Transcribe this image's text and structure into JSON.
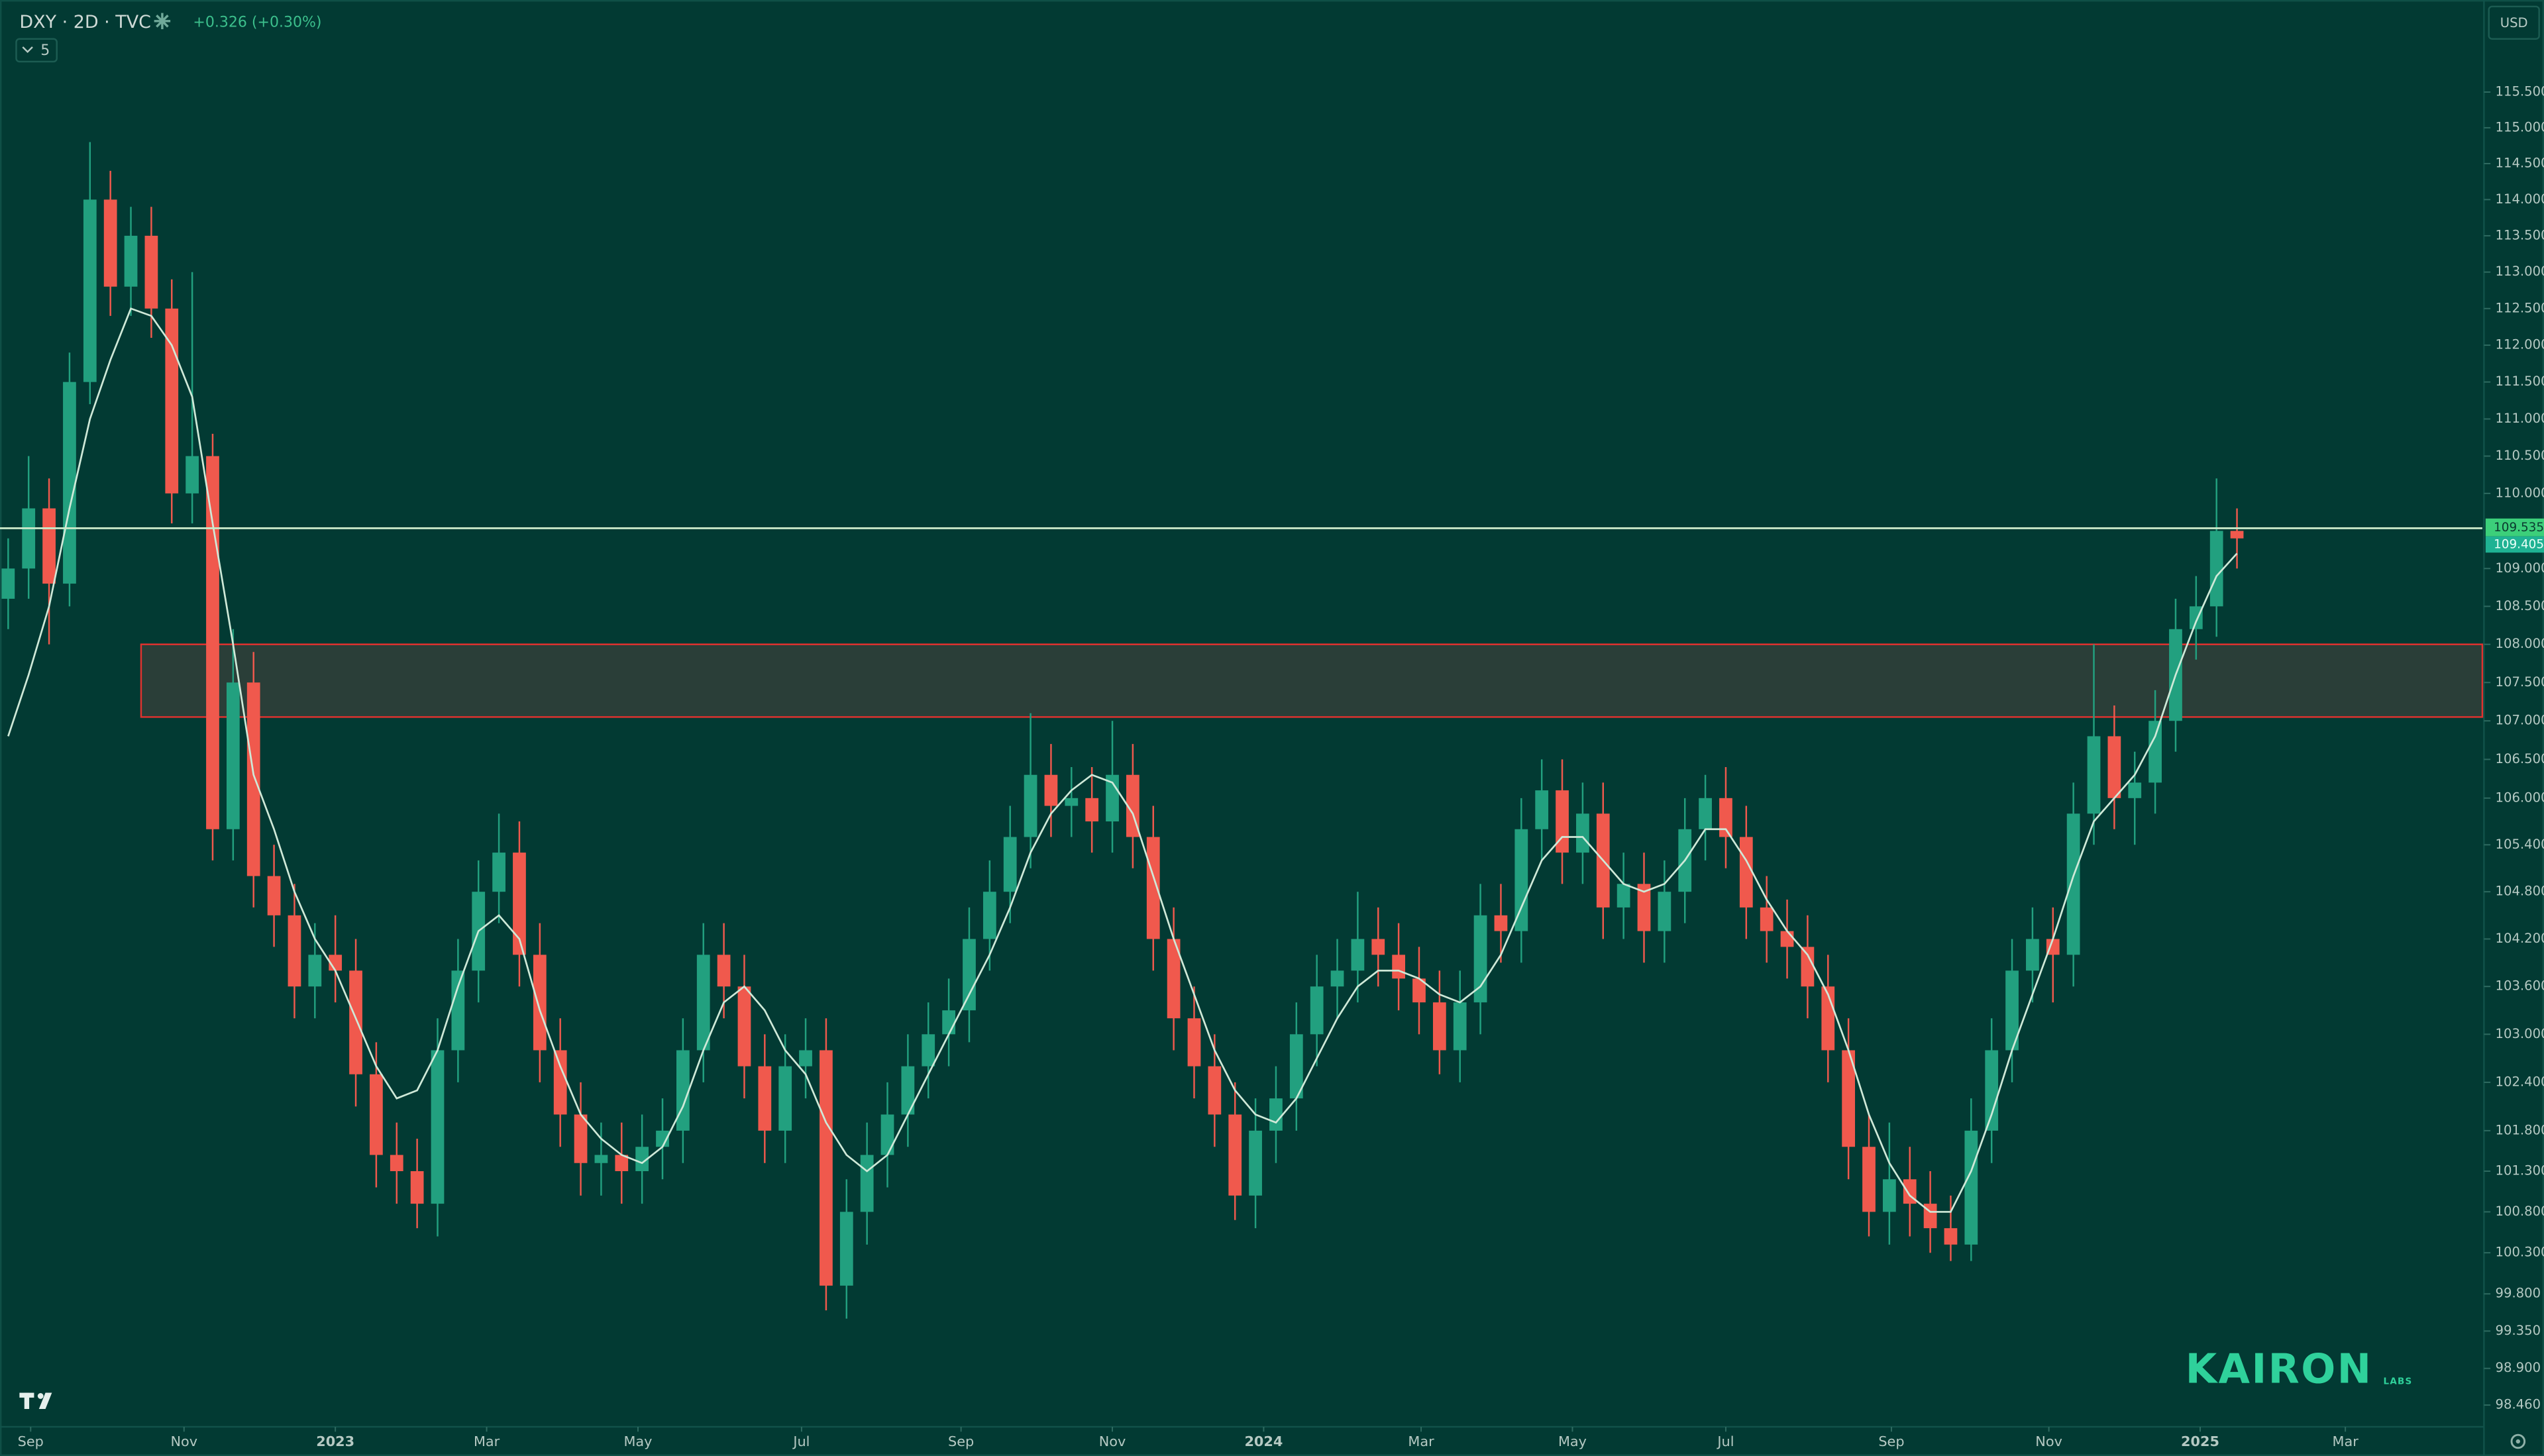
{
  "chart_data": {
    "type": "candlestick",
    "title": "DXY · 2D · TVC",
    "change": "+0.326 (+0.30%)",
    "indicator": "5",
    "currency": "USD",
    "logo": "KAIRON",
    "logo_sub": "LABS",
    "log_scale": true,
    "grid": false,
    "up_color": "#22a07f",
    "down_color": "#f0594d",
    "ylim": [
      98.2,
      116.8
    ],
    "xlim": [
      -0.4,
      121
    ],
    "yticks": [
      {
        "value": 115.5,
        "label": "115.500"
      },
      {
        "value": 115,
        "label": "115.000"
      },
      {
        "value": 114.5,
        "label": "114.500"
      },
      {
        "value": 114,
        "label": "114.000"
      },
      {
        "value": 113.5,
        "label": "113.500"
      },
      {
        "value": 113,
        "label": "113.000"
      },
      {
        "value": 112.5,
        "label": "112.500"
      },
      {
        "value": 112,
        "label": "112.000"
      },
      {
        "value": 111.5,
        "label": "111.500"
      },
      {
        "value": 111,
        "label": "111.000"
      },
      {
        "value": 110.5,
        "label": "110.500"
      },
      {
        "value": 110,
        "label": "110.000"
      },
      {
        "value": 109,
        "label": "109.000"
      },
      {
        "value": 108.5,
        "label": "108.500"
      },
      {
        "value": 108,
        "label": "108.000"
      },
      {
        "value": 107.5,
        "label": "107.500"
      },
      {
        "value": 107,
        "label": "107.000"
      },
      {
        "value": 106.5,
        "label": "106.500"
      },
      {
        "value": 106,
        "label": "106.000"
      },
      {
        "value": 105.4,
        "label": "105.400"
      },
      {
        "value": 104.8,
        "label": "104.800"
      },
      {
        "value": 104.2,
        "label": "104.200"
      },
      {
        "value": 103.6,
        "label": "103.600"
      },
      {
        "value": 103,
        "label": "103.000"
      },
      {
        "value": 102.4,
        "label": "102.400"
      },
      {
        "value": 101.8,
        "label": "101.800"
      },
      {
        "value": 101.3,
        "label": "101.300"
      },
      {
        "value": 100.8,
        "label": "100.800"
      },
      {
        "value": 100.3,
        "label": "100.300"
      },
      {
        "value": 99.8,
        "label": "99.800"
      },
      {
        "value": 99.35,
        "label": "99.350"
      },
      {
        "value": 98.9,
        "label": "98.900"
      },
      {
        "value": 98.46,
        "label": "98.460"
      }
    ],
    "xticks": [
      {
        "value": 1.1,
        "label": "Sep"
      },
      {
        "value": 8.6,
        "label": "Nov"
      },
      {
        "value": 16.0,
        "label": "2023"
      },
      {
        "value": 23.4,
        "label": "Mar"
      },
      {
        "value": 30.8,
        "label": "May"
      },
      {
        "value": 38.8,
        "label": "Jul"
      },
      {
        "value": 46.6,
        "label": "Sep"
      },
      {
        "value": 54.0,
        "label": "Nov"
      },
      {
        "value": 61.4,
        "label": "2024"
      },
      {
        "value": 69.1,
        "label": "Mar"
      },
      {
        "value": 76.5,
        "label": "May"
      },
      {
        "value": 84.0,
        "label": "Jul"
      },
      {
        "value": 92.1,
        "label": "Sep"
      },
      {
        "value": 99.8,
        "label": "Nov"
      },
      {
        "value": 107.2,
        "label": "2025"
      },
      {
        "value": 114.3,
        "label": "Mar"
      }
    ],
    "hline": 109.535,
    "hline_color": "#c9e8c8",
    "last_price": 109.405,
    "zone": {
      "x0": 6.5,
      "y": [
        107.05,
        108.0
      ],
      "color": "#2f3f38",
      "border": "#e0322f"
    },
    "ohlc": [
      [
        108.6,
        109.4,
        108.2,
        109.0
      ],
      [
        109.0,
        110.5,
        108.6,
        109.8
      ],
      [
        109.8,
        110.2,
        108.0,
        108.8
      ],
      [
        108.8,
        111.9,
        108.5,
        111.5
      ],
      [
        111.5,
        114.8,
        111.2,
        114.0
      ],
      [
        114.0,
        114.4,
        112.4,
        112.8
      ],
      [
        112.8,
        113.9,
        112.4,
        113.5
      ],
      [
        113.5,
        113.9,
        112.1,
        112.5
      ],
      [
        112.5,
        112.9,
        109.6,
        110.0
      ],
      [
        110.0,
        113.0,
        109.6,
        110.5
      ],
      [
        110.5,
        110.8,
        105.2,
        105.6
      ],
      [
        105.6,
        108.2,
        105.2,
        107.5
      ],
      [
        107.5,
        107.9,
        104.6,
        105.0
      ],
      [
        105.0,
        105.4,
        104.1,
        104.5
      ],
      [
        104.5,
        104.9,
        103.2,
        103.6
      ],
      [
        103.6,
        104.4,
        103.2,
        104.0
      ],
      [
        104.0,
        104.5,
        103.4,
        103.8
      ],
      [
        103.8,
        104.2,
        102.1,
        102.5
      ],
      [
        102.5,
        102.9,
        101.1,
        101.5
      ],
      [
        101.5,
        101.9,
        100.9,
        101.3
      ],
      [
        101.3,
        101.7,
        100.6,
        100.9
      ],
      [
        100.9,
        103.2,
        100.5,
        102.8
      ],
      [
        102.8,
        104.2,
        102.4,
        103.8
      ],
      [
        103.8,
        105.2,
        103.4,
        104.8
      ],
      [
        104.8,
        105.8,
        104.4,
        105.3
      ],
      [
        105.3,
        105.7,
        103.6,
        104.0
      ],
      [
        104.0,
        104.4,
        102.4,
        102.8
      ],
      [
        102.8,
        103.2,
        101.6,
        102.0
      ],
      [
        102.0,
        102.4,
        101.0,
        101.4
      ],
      [
        101.4,
        101.9,
        101.0,
        101.5
      ],
      [
        101.5,
        101.9,
        100.9,
        101.3
      ],
      [
        101.3,
        102.0,
        100.9,
        101.6
      ],
      [
        101.6,
        102.2,
        101.2,
        101.8
      ],
      [
        101.8,
        103.2,
        101.4,
        102.8
      ],
      [
        102.8,
        104.4,
        102.4,
        104.0
      ],
      [
        104.0,
        104.4,
        103.2,
        103.6
      ],
      [
        103.6,
        104.0,
        102.2,
        102.6
      ],
      [
        102.6,
        103.0,
        101.4,
        101.8
      ],
      [
        101.8,
        103.0,
        101.4,
        102.6
      ],
      [
        102.6,
        103.2,
        102.2,
        102.8
      ],
      [
        102.8,
        103.2,
        99.6,
        99.9
      ],
      [
        99.9,
        101.2,
        99.5,
        100.8
      ],
      [
        100.8,
        101.9,
        100.4,
        101.5
      ],
      [
        101.5,
        102.4,
        101.1,
        102.0
      ],
      [
        102.0,
        103.0,
        101.6,
        102.6
      ],
      [
        102.6,
        103.4,
        102.2,
        103.0
      ],
      [
        103.0,
        103.7,
        102.6,
        103.3
      ],
      [
        103.3,
        104.6,
        102.9,
        104.2
      ],
      [
        104.2,
        105.2,
        103.8,
        104.8
      ],
      [
        104.8,
        105.9,
        104.4,
        105.5
      ],
      [
        105.5,
        107.1,
        105.1,
        106.3
      ],
      [
        106.3,
        106.7,
        105.5,
        105.9
      ],
      [
        105.9,
        106.4,
        105.5,
        106.0
      ],
      [
        106.0,
        106.4,
        105.3,
        105.7
      ],
      [
        105.7,
        107.0,
        105.3,
        106.3
      ],
      [
        106.3,
        106.7,
        105.1,
        105.5
      ],
      [
        105.5,
        105.9,
        103.8,
        104.2
      ],
      [
        104.2,
        104.6,
        102.8,
        103.2
      ],
      [
        103.2,
        103.6,
        102.2,
        102.6
      ],
      [
        102.6,
        103.0,
        101.6,
        102.0
      ],
      [
        102.0,
        102.4,
        100.7,
        101.0
      ],
      [
        101.0,
        102.2,
        100.6,
        101.8
      ],
      [
        101.8,
        102.6,
        101.4,
        102.2
      ],
      [
        102.2,
        103.4,
        101.8,
        103.0
      ],
      [
        103.0,
        104.0,
        102.6,
        103.6
      ],
      [
        103.6,
        104.2,
        103.2,
        103.8
      ],
      [
        103.8,
        104.8,
        103.4,
        104.2
      ],
      [
        104.2,
        104.6,
        103.6,
        104.0
      ],
      [
        104.0,
        104.4,
        103.3,
        103.7
      ],
      [
        103.7,
        104.1,
        103.0,
        103.4
      ],
      [
        103.4,
        103.8,
        102.5,
        102.8
      ],
      [
        102.8,
        103.8,
        102.4,
        103.4
      ],
      [
        103.4,
        104.9,
        103.0,
        104.5
      ],
      [
        104.5,
        104.9,
        103.9,
        104.3
      ],
      [
        104.3,
        106.0,
        103.9,
        105.6
      ],
      [
        105.6,
        106.5,
        105.2,
        106.1
      ],
      [
        106.1,
        106.5,
        104.9,
        105.3
      ],
      [
        105.3,
        106.2,
        104.9,
        105.8
      ],
      [
        105.8,
        106.2,
        104.2,
        104.6
      ],
      [
        104.6,
        105.3,
        104.2,
        104.9
      ],
      [
        104.9,
        105.3,
        103.9,
        104.3
      ],
      [
        104.3,
        105.2,
        103.9,
        104.8
      ],
      [
        104.8,
        106.0,
        104.4,
        105.6
      ],
      [
        105.6,
        106.3,
        105.2,
        106.0
      ],
      [
        106.0,
        106.4,
        105.1,
        105.5
      ],
      [
        105.5,
        105.9,
        104.2,
        104.6
      ],
      [
        104.6,
        105.0,
        103.9,
        104.3
      ],
      [
        104.3,
        104.7,
        103.7,
        104.1
      ],
      [
        104.1,
        104.5,
        103.2,
        103.6
      ],
      [
        103.6,
        104.0,
        102.4,
        102.8
      ],
      [
        102.8,
        103.2,
        101.2,
        101.6
      ],
      [
        101.6,
        102.0,
        100.5,
        100.8
      ],
      [
        100.8,
        101.9,
        100.4,
        101.2
      ],
      [
        101.2,
        101.6,
        100.5,
        100.9
      ],
      [
        100.9,
        101.3,
        100.3,
        100.6
      ],
      [
        100.6,
        101.0,
        100.2,
        100.4
      ],
      [
        100.4,
        102.2,
        100.2,
        101.8
      ],
      [
        101.8,
        103.2,
        101.4,
        102.8
      ],
      [
        102.8,
        104.2,
        102.4,
        103.8
      ],
      [
        103.8,
        104.6,
        103.4,
        104.2
      ],
      [
        104.2,
        104.6,
        103.4,
        104.0
      ],
      [
        104.0,
        106.2,
        103.6,
        105.8
      ],
      [
        105.8,
        108.0,
        105.4,
        106.8
      ],
      [
        106.8,
        107.2,
        105.6,
        106.0
      ],
      [
        106.0,
        106.6,
        105.4,
        106.2
      ],
      [
        106.2,
        107.4,
        105.8,
        107.0
      ],
      [
        107.0,
        108.6,
        106.6,
        108.2
      ],
      [
        108.2,
        108.9,
        107.8,
        108.5
      ],
      [
        108.5,
        110.2,
        108.1,
        109.5
      ],
      [
        109.5,
        109.8,
        109.0,
        109.4
      ]
    ],
    "ma": {
      "color": "#cfe9d8",
      "values": [
        106.8,
        107.6,
        108.5,
        109.8,
        111.0,
        111.8,
        112.5,
        112.4,
        112.0,
        111.3,
        109.6,
        108.0,
        106.3,
        105.6,
        104.8,
        104.2,
        103.8,
        103.2,
        102.6,
        102.2,
        102.3,
        102.8,
        103.6,
        104.3,
        104.5,
        104.2,
        103.3,
        102.6,
        102.0,
        101.7,
        101.5,
        101.4,
        101.6,
        102.1,
        102.8,
        103.4,
        103.6,
        103.3,
        102.8,
        102.5,
        101.9,
        101.5,
        101.3,
        101.5,
        102.0,
        102.5,
        103.0,
        103.5,
        104.0,
        104.6,
        105.3,
        105.8,
        106.1,
        106.3,
        106.2,
        105.8,
        105.0,
        104.2,
        103.5,
        102.8,
        102.3,
        102.0,
        101.9,
        102.2,
        102.7,
        103.2,
        103.6,
        103.8,
        103.8,
        103.7,
        103.5,
        103.4,
        103.6,
        104.0,
        104.6,
        105.2,
        105.5,
        105.5,
        105.2,
        104.9,
        104.8,
        104.9,
        105.2,
        105.6,
        105.6,
        105.2,
        104.7,
        104.3,
        104.0,
        103.5,
        102.8,
        102.0,
        101.4,
        101.0,
        100.8,
        100.8,
        101.3,
        102.0,
        102.8,
        103.5,
        104.2,
        105.0,
        105.7,
        106.0,
        106.3,
        106.8,
        107.6,
        108.3,
        108.9,
        109.2
      ]
    }
  }
}
